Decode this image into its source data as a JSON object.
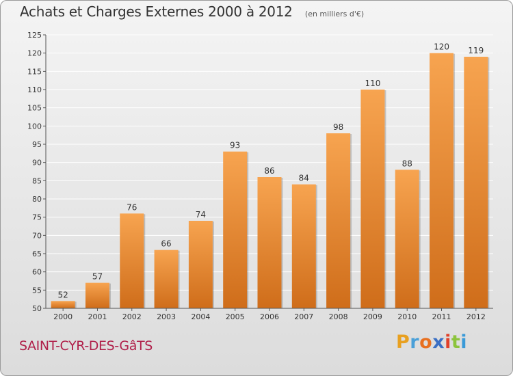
{
  "header": {
    "title": "Achats et Charges Externes 2000 à 2012",
    "subtitle": "(en milliers d'€)"
  },
  "footer": {
    "location": "SAINT-CYR-DES-GâTS",
    "brand_letters": [
      "P",
      "r",
      "o",
      "x",
      "i",
      "t",
      "i"
    ],
    "brand_colors": [
      "#e8a020",
      "#4aa0d8",
      "#e87020",
      "#3a6fc4",
      "#e0402a",
      "#8cc43c",
      "#3a9ad8"
    ]
  },
  "colors": {
    "bar_light": "#f7a450",
    "bar_dark": "#cf6d1a",
    "axis": "#555555",
    "grid": "#ffffff"
  },
  "chart_data": {
    "type": "bar",
    "categories": [
      "2000",
      "2001",
      "2002",
      "2003",
      "2004",
      "2005",
      "2006",
      "2007",
      "2008",
      "2009",
      "2010",
      "2011",
      "2012"
    ],
    "values": [
      52,
      57,
      76,
      66,
      74,
      93,
      86,
      84,
      98,
      110,
      88,
      120,
      119
    ],
    "ylim": [
      50,
      125
    ],
    "yticks": [
      50,
      55,
      60,
      65,
      70,
      75,
      80,
      85,
      90,
      95,
      100,
      105,
      110,
      115,
      120,
      125
    ],
    "grid": true,
    "data_labels": true
  }
}
